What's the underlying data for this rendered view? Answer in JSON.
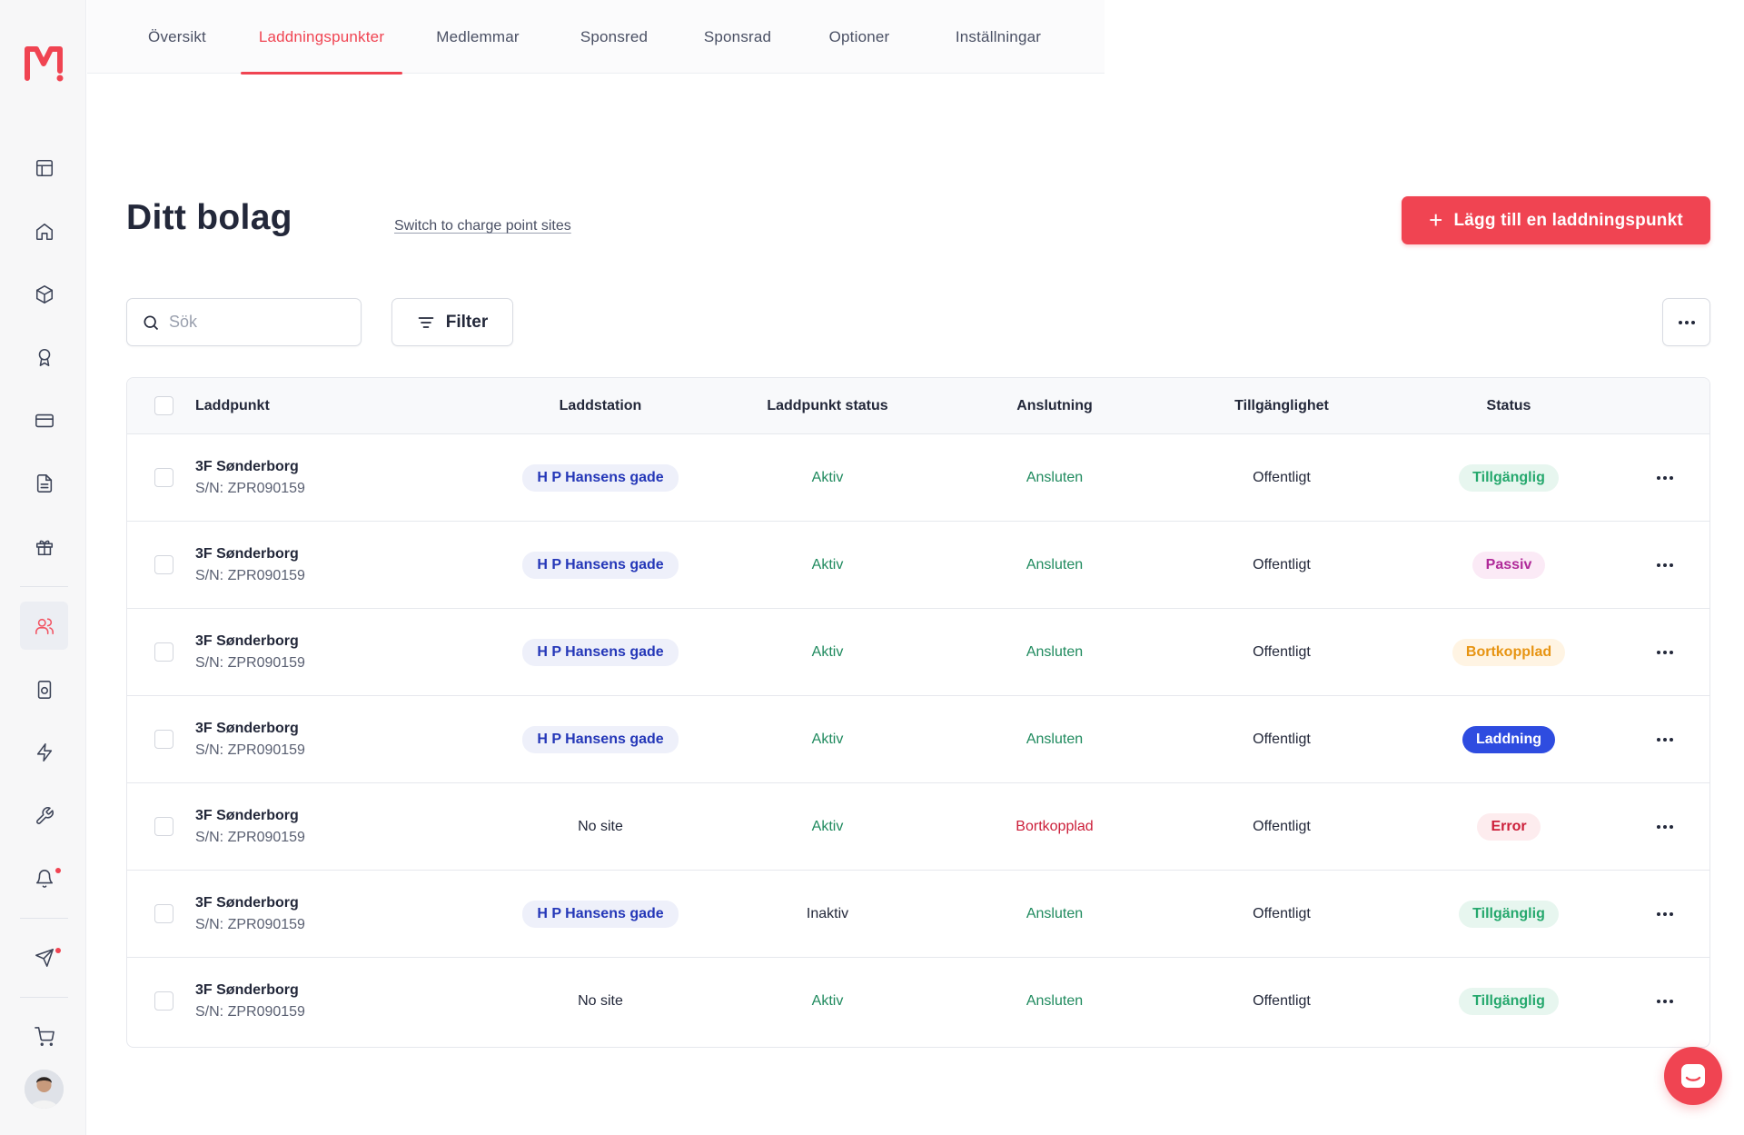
{
  "brand": {
    "accent": "#f04452",
    "logo_icon": "m-logo-icon"
  },
  "tabs": [
    {
      "label": "Översikt",
      "active": false
    },
    {
      "label": "Laddningspunkter",
      "active": true
    },
    {
      "label": "Medlemmar",
      "active": false
    },
    {
      "label": "Sponsred",
      "active": false
    },
    {
      "label": "Sponsrad",
      "active": false
    },
    {
      "label": "Optioner",
      "active": false
    },
    {
      "label": "Inställningar",
      "active": false
    }
  ],
  "sidebar": {
    "icons": [
      "layout-icon",
      "home-icon",
      "box-icon",
      "award-icon",
      "credit-card-icon",
      "document-icon",
      "gift-icon",
      "users-icon",
      "device-icon",
      "lightning-icon",
      "wrench-icon",
      "bell-icon",
      "send-icon",
      "cart-icon"
    ],
    "active": "users-icon"
  },
  "header": {
    "title": "Ditt bolag",
    "switch_link": "Switch to charge point sites",
    "add_button": "Lägg till en laddningspunkt"
  },
  "toolbar": {
    "search_placeholder": "Sök",
    "filter_label": "Filter"
  },
  "table": {
    "columns": [
      "Laddpunkt",
      "Laddstation",
      "Laddpunkt status",
      "Anslutning",
      "Tillgänglighet",
      "Status"
    ],
    "rows": [
      {
        "name": "3F Sønderborg",
        "serial": "S/N: ZPR090159",
        "station": "H P Hansens gade",
        "station_is_site": true,
        "cp_status": "Aktiv",
        "connection": "Ansluten",
        "connection_state": "ok",
        "availability": "Offentligt",
        "status": "Tillgänglig",
        "status_kind": "tillganglig"
      },
      {
        "name": "3F Sønderborg",
        "serial": "S/N: ZPR090159",
        "station": "H P Hansens gade",
        "station_is_site": true,
        "cp_status": "Aktiv",
        "connection": "Ansluten",
        "connection_state": "ok",
        "availability": "Offentligt",
        "status": "Passiv",
        "status_kind": "passiv"
      },
      {
        "name": "3F Sønderborg",
        "serial": "S/N: ZPR090159",
        "station": "H P Hansens gade",
        "station_is_site": true,
        "cp_status": "Aktiv",
        "connection": "Ansluten",
        "connection_state": "ok",
        "availability": "Offentligt",
        "status": "Bortkopplad",
        "status_kind": "bortkopplad"
      },
      {
        "name": "3F Sønderborg",
        "serial": "S/N: ZPR090159",
        "station": "H P Hansens gade",
        "station_is_site": true,
        "cp_status": "Aktiv",
        "connection": "Ansluten",
        "connection_state": "ok",
        "availability": "Offentligt",
        "status": "Laddning",
        "status_kind": "laddning"
      },
      {
        "name": "3F Sønderborg",
        "serial": "S/N: ZPR090159",
        "station": "No site",
        "station_is_site": false,
        "cp_status": "Aktiv",
        "connection": "Bortkopplad",
        "connection_state": "error",
        "availability": "Offentligt",
        "status": "Error",
        "status_kind": "error"
      },
      {
        "name": "3F Sønderborg",
        "serial": "S/N: ZPR090159",
        "station": "H P Hansens gade",
        "station_is_site": true,
        "cp_status": "Inaktiv",
        "connection": "Ansluten",
        "connection_state": "ok",
        "availability": "Offentligt",
        "status": "Tillgänglig",
        "status_kind": "tillganglig"
      },
      {
        "name": "3F Sønderborg",
        "serial": "S/N: ZPR090159",
        "station": "No site",
        "station_is_site": false,
        "cp_status": "Aktiv",
        "connection": "Ansluten",
        "connection_state": "ok",
        "availability": "Offentligt",
        "status": "Tillgänglig",
        "status_kind": "tillganglig"
      }
    ]
  }
}
